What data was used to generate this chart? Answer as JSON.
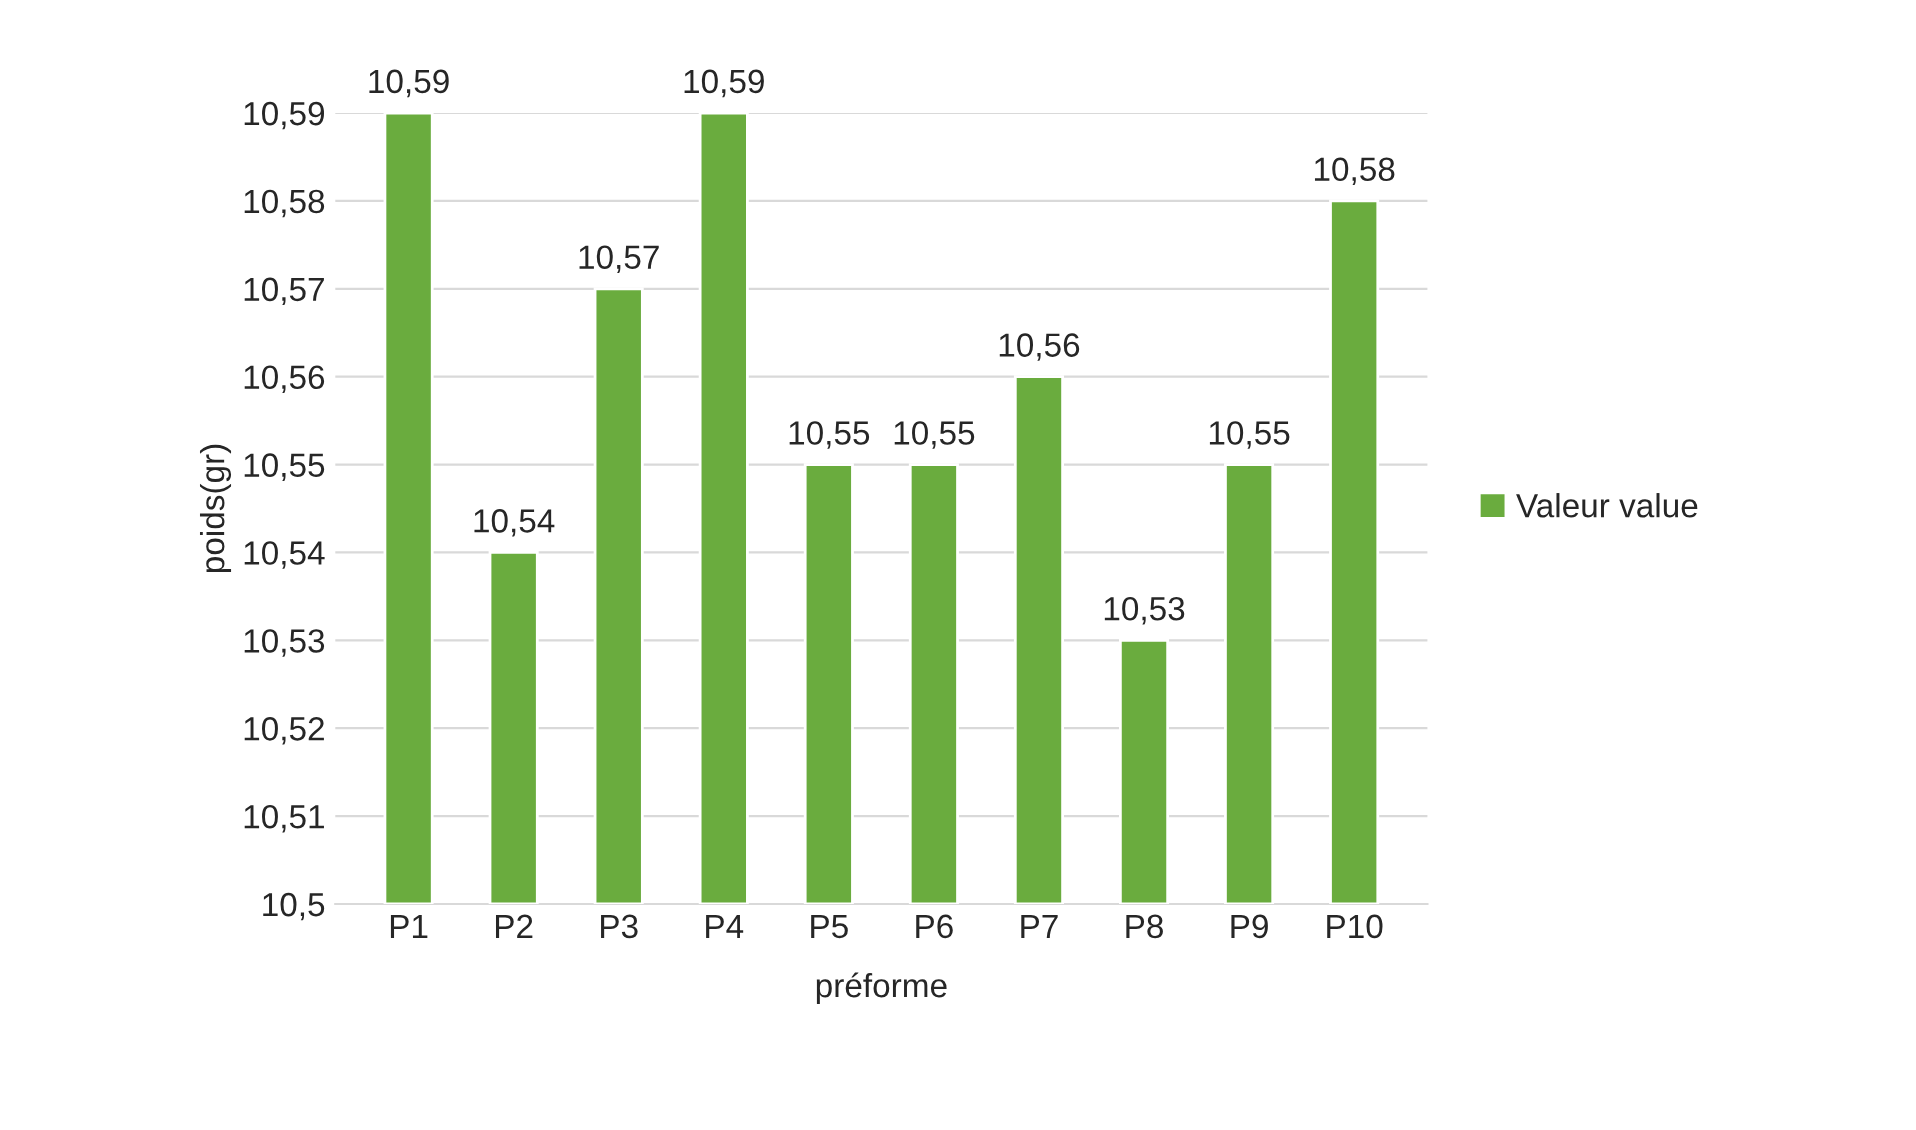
{
  "chart_data": {
    "type": "bar",
    "xlabel": "préforme",
    "ylabel": "poids(gr)",
    "categories": [
      "P1",
      "P2",
      "P3",
      "P4",
      "P5",
      "P6",
      "P7",
      "P8",
      "P9",
      "P10"
    ],
    "series": [
      {
        "name": "Valeur value",
        "color": "#6aac3e",
        "values": [
          10.59,
          10.54,
          10.57,
          10.59,
          10.55,
          10.55,
          10.56,
          10.53,
          10.55,
          10.58
        ]
      }
    ],
    "value_labels": [
      "10,59",
      "10,54",
      "10,57",
      "10,59",
      "10,55",
      "10,55",
      "10,56",
      "10,53",
      "10,55",
      "10,58"
    ],
    "ylim": [
      10.5,
      10.59
    ],
    "yticks": [
      {
        "value": 10.5,
        "label": "10,5"
      },
      {
        "value": 10.51,
        "label": "10,51"
      },
      {
        "value": 10.52,
        "label": "10,52"
      },
      {
        "value": 10.53,
        "label": "10,53"
      },
      {
        "value": 10.54,
        "label": "10,54"
      },
      {
        "value": 10.55,
        "label": "10,55"
      },
      {
        "value": 10.56,
        "label": "10,56"
      },
      {
        "value": 10.57,
        "label": "10,57"
      },
      {
        "value": 10.58,
        "label": "10,58"
      },
      {
        "value": 10.59,
        "label": "10,59"
      }
    ],
    "grid": "y",
    "legend": "right"
  }
}
